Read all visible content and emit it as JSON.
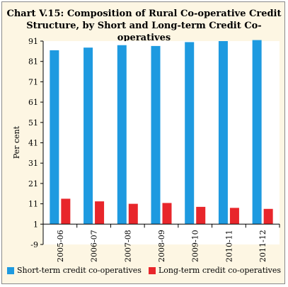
{
  "chart_data": {
    "type": "bar",
    "title_line1": "Chart V.15: Composition of Rural Co-operative Credit",
    "title_line2": "Structure, by Short and Long-term Credit Co-operatives",
    "ylabel": "Per cent",
    "xlabel": "",
    "ylim": [
      -9,
      91
    ],
    "yticks": [
      -9,
      1,
      11,
      21,
      31,
      41,
      51,
      61,
      71,
      81,
      91
    ],
    "categories": [
      "2005-06",
      "2006-07",
      "2007-08",
      "2008-09",
      "2009-10",
      "2010-11",
      "2011-12"
    ],
    "series": [
      {
        "name": "Short-term credit co-operatives",
        "color": "#1e9ae0",
        "values": [
          86.5,
          87.8,
          89.0,
          88.6,
          90.5,
          91.0,
          91.5
        ]
      },
      {
        "name": "Long-term credit co-operatives",
        "color": "#e8262b",
        "values": [
          13.5,
          12.2,
          11.0,
          11.4,
          9.5,
          9.0,
          8.5
        ]
      }
    ],
    "grid": false,
    "legend": "bottom"
  }
}
